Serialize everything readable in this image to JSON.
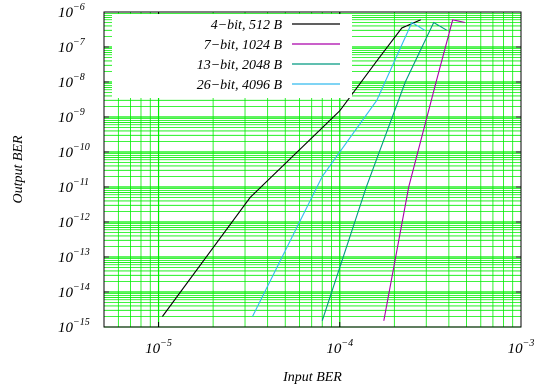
{
  "chart_data": {
    "type": "line",
    "xlabel": "Input BER",
    "ylabel": "Output BER",
    "x_scale": "log",
    "y_scale": "log",
    "xlim": [
      5e-06,
      0.001
    ],
    "ylim": [
      1e-15,
      1e-06
    ],
    "grid": true,
    "grid_color": "#00ee00",
    "legend_position": "top-left",
    "x_ticks": [
      {
        "base": "10",
        "exp": "−5",
        "value": 1e-05
      },
      {
        "base": "10",
        "exp": "−4",
        "value": 0.0001
      },
      {
        "base": "10",
        "exp": "−3",
        "value": 0.001
      }
    ],
    "y_ticks": [
      {
        "base": "10",
        "exp": "−6",
        "value": 1e-06
      },
      {
        "base": "10",
        "exp": "−7",
        "value": 1e-07
      },
      {
        "base": "10",
        "exp": "−8",
        "value": 1e-08
      },
      {
        "base": "10",
        "exp": "−9",
        "value": 1e-09
      },
      {
        "base": "10",
        "exp": "−10",
        "value": 1e-10
      },
      {
        "base": "10",
        "exp": "−11",
        "value": 1e-11
      },
      {
        "base": "10",
        "exp": "−12",
        "value": 1e-12
      },
      {
        "base": "10",
        "exp": "−13",
        "value": 1e-13
      },
      {
        "base": "10",
        "exp": "−14",
        "value": 1e-14
      },
      {
        "base": "10",
        "exp": "−15",
        "value": 1e-15
      }
    ],
    "series": [
      {
        "name": "4−bit, 512 B",
        "color": "#000000",
        "points": [
          [
            1.05e-05,
            2e-15
          ],
          [
            3.2e-05,
            5e-12
          ],
          [
            0.0001,
            1.5e-09
          ],
          [
            0.00016,
            4e-08
          ],
          [
            0.00022,
            3.5e-07
          ],
          [
            0.00028,
            6e-07
          ]
        ]
      },
      {
        "name": "7−bit, 1024 B",
        "color": "#aa00aa",
        "points": [
          [
            0.000175,
            1.5e-15
          ],
          [
            0.00024,
            1e-11
          ],
          [
            0.00034,
            1e-08
          ],
          [
            0.00042,
            6e-07
          ],
          [
            0.00049,
            5e-07
          ]
        ]
      },
      {
        "name": "13−bit, 2048 B",
        "color": "#009980",
        "points": [
          [
            8e-05,
            1.5e-15
          ],
          [
            0.00014,
            1e-11
          ],
          [
            0.00023,
            1e-08
          ],
          [
            0.00033,
            5e-07
          ],
          [
            0.00039,
            3e-07
          ]
        ]
      },
      {
        "name": "26−bit, 4096 B",
        "color": "#33bbee",
        "points": [
          [
            3.3e-05,
            2e-15
          ],
          [
            8e-05,
            2e-11
          ],
          [
            0.00016,
            3e-09
          ],
          [
            0.00025,
            5e-07
          ],
          [
            0.000295,
            3e-07
          ]
        ]
      }
    ]
  }
}
